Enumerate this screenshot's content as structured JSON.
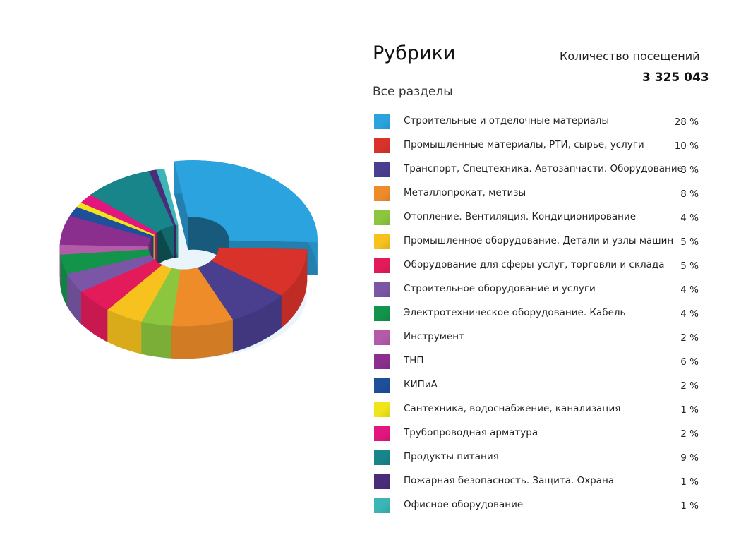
{
  "header": {
    "title": "Рубрики",
    "visits_label": "Количество посещений",
    "visits_value": "3 325 043",
    "section_label": "Все разделы"
  },
  "chart_data": {
    "type": "pie",
    "title": "Рубрики",
    "legend_position": "right",
    "categories": [
      "Строительные и отделочные материалы",
      "Промышленные материалы, РТИ, сырье, услуги",
      "Транспорт, Спецтехника. Автозапчасти. Оборудование",
      "Металлопрокат, метизы",
      "Отопление. Вентиляция. Кондиционирование",
      "Промышленное оборудование. Детали и узлы машин",
      "Оборудование для сферы услуг, торговли и склада",
      "Строительное оборудование и услуги",
      "Электротехническое оборудование. Кабель",
      "Инструмент",
      "ТНП",
      "КИПиА",
      "Сантехника, водоснабжение, канализация",
      "Трубопроводная арматура",
      "Продукты питания",
      "Пожарная безопасность. Защита. Охрана",
      "Офисное оборудование"
    ],
    "values": [
      28,
      10,
      8,
      8,
      4,
      5,
      5,
      4,
      4,
      2,
      6,
      2,
      1,
      2,
      9,
      1,
      1
    ],
    "value_labels": [
      "28 %",
      "10 %",
      "8 %",
      "8 %",
      "4 %",
      "5 %",
      "5 %",
      "4 %",
      "4 %",
      "2 %",
      "6 %",
      "2 %",
      "1 %",
      "2 %",
      "9 %",
      "1 %",
      "1 %"
    ],
    "colors": [
      "#2ba3df",
      "#d8322a",
      "#4a3f8f",
      "#ef8c2a",
      "#8cc63f",
      "#f7c21e",
      "#e31b5b",
      "#7b56a6",
      "#12944a",
      "#b35aa8",
      "#8b2f8e",
      "#1f4e9b",
      "#f1e41b",
      "#e2167c",
      "#17858a",
      "#4b2c7a",
      "#3bb5b5"
    ]
  }
}
